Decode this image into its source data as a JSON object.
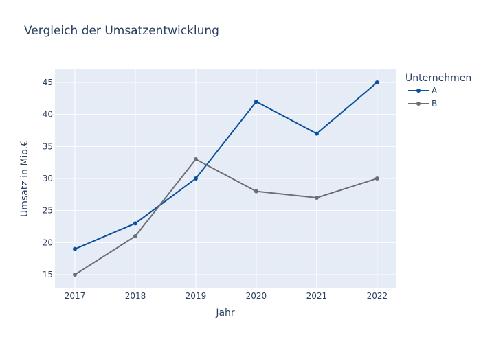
{
  "chart_data": {
    "type": "line",
    "title": "Vergleich der Umsatzentwicklung",
    "xlabel": "Jahr",
    "ylabel": "Umsatz in Mio.€",
    "x": [
      2017,
      2018,
      2019,
      2020,
      2021,
      2022
    ],
    "series": [
      {
        "name": "A",
        "values": [
          19,
          23,
          30,
          42,
          37,
          45
        ],
        "color": "#0b4f9c"
      },
      {
        "name": "B",
        "values": [
          15,
          21,
          33,
          28,
          27,
          30
        ],
        "color": "#6b6e72"
      }
    ],
    "xticks": [
      "2017",
      "2018",
      "2019",
      "2020",
      "2021",
      "2022"
    ],
    "yticks": [
      "15",
      "20",
      "25",
      "30",
      "35",
      "40",
      "45"
    ],
    "xlim": [
      2016.67,
      2022.32
    ],
    "ylim": [
      12.86,
      47.14
    ],
    "grid": true,
    "legend_title": "Unternehmen",
    "legend_position": "right",
    "plot_bg": "#e5ecf6",
    "text_color": "#2a3f5f"
  }
}
